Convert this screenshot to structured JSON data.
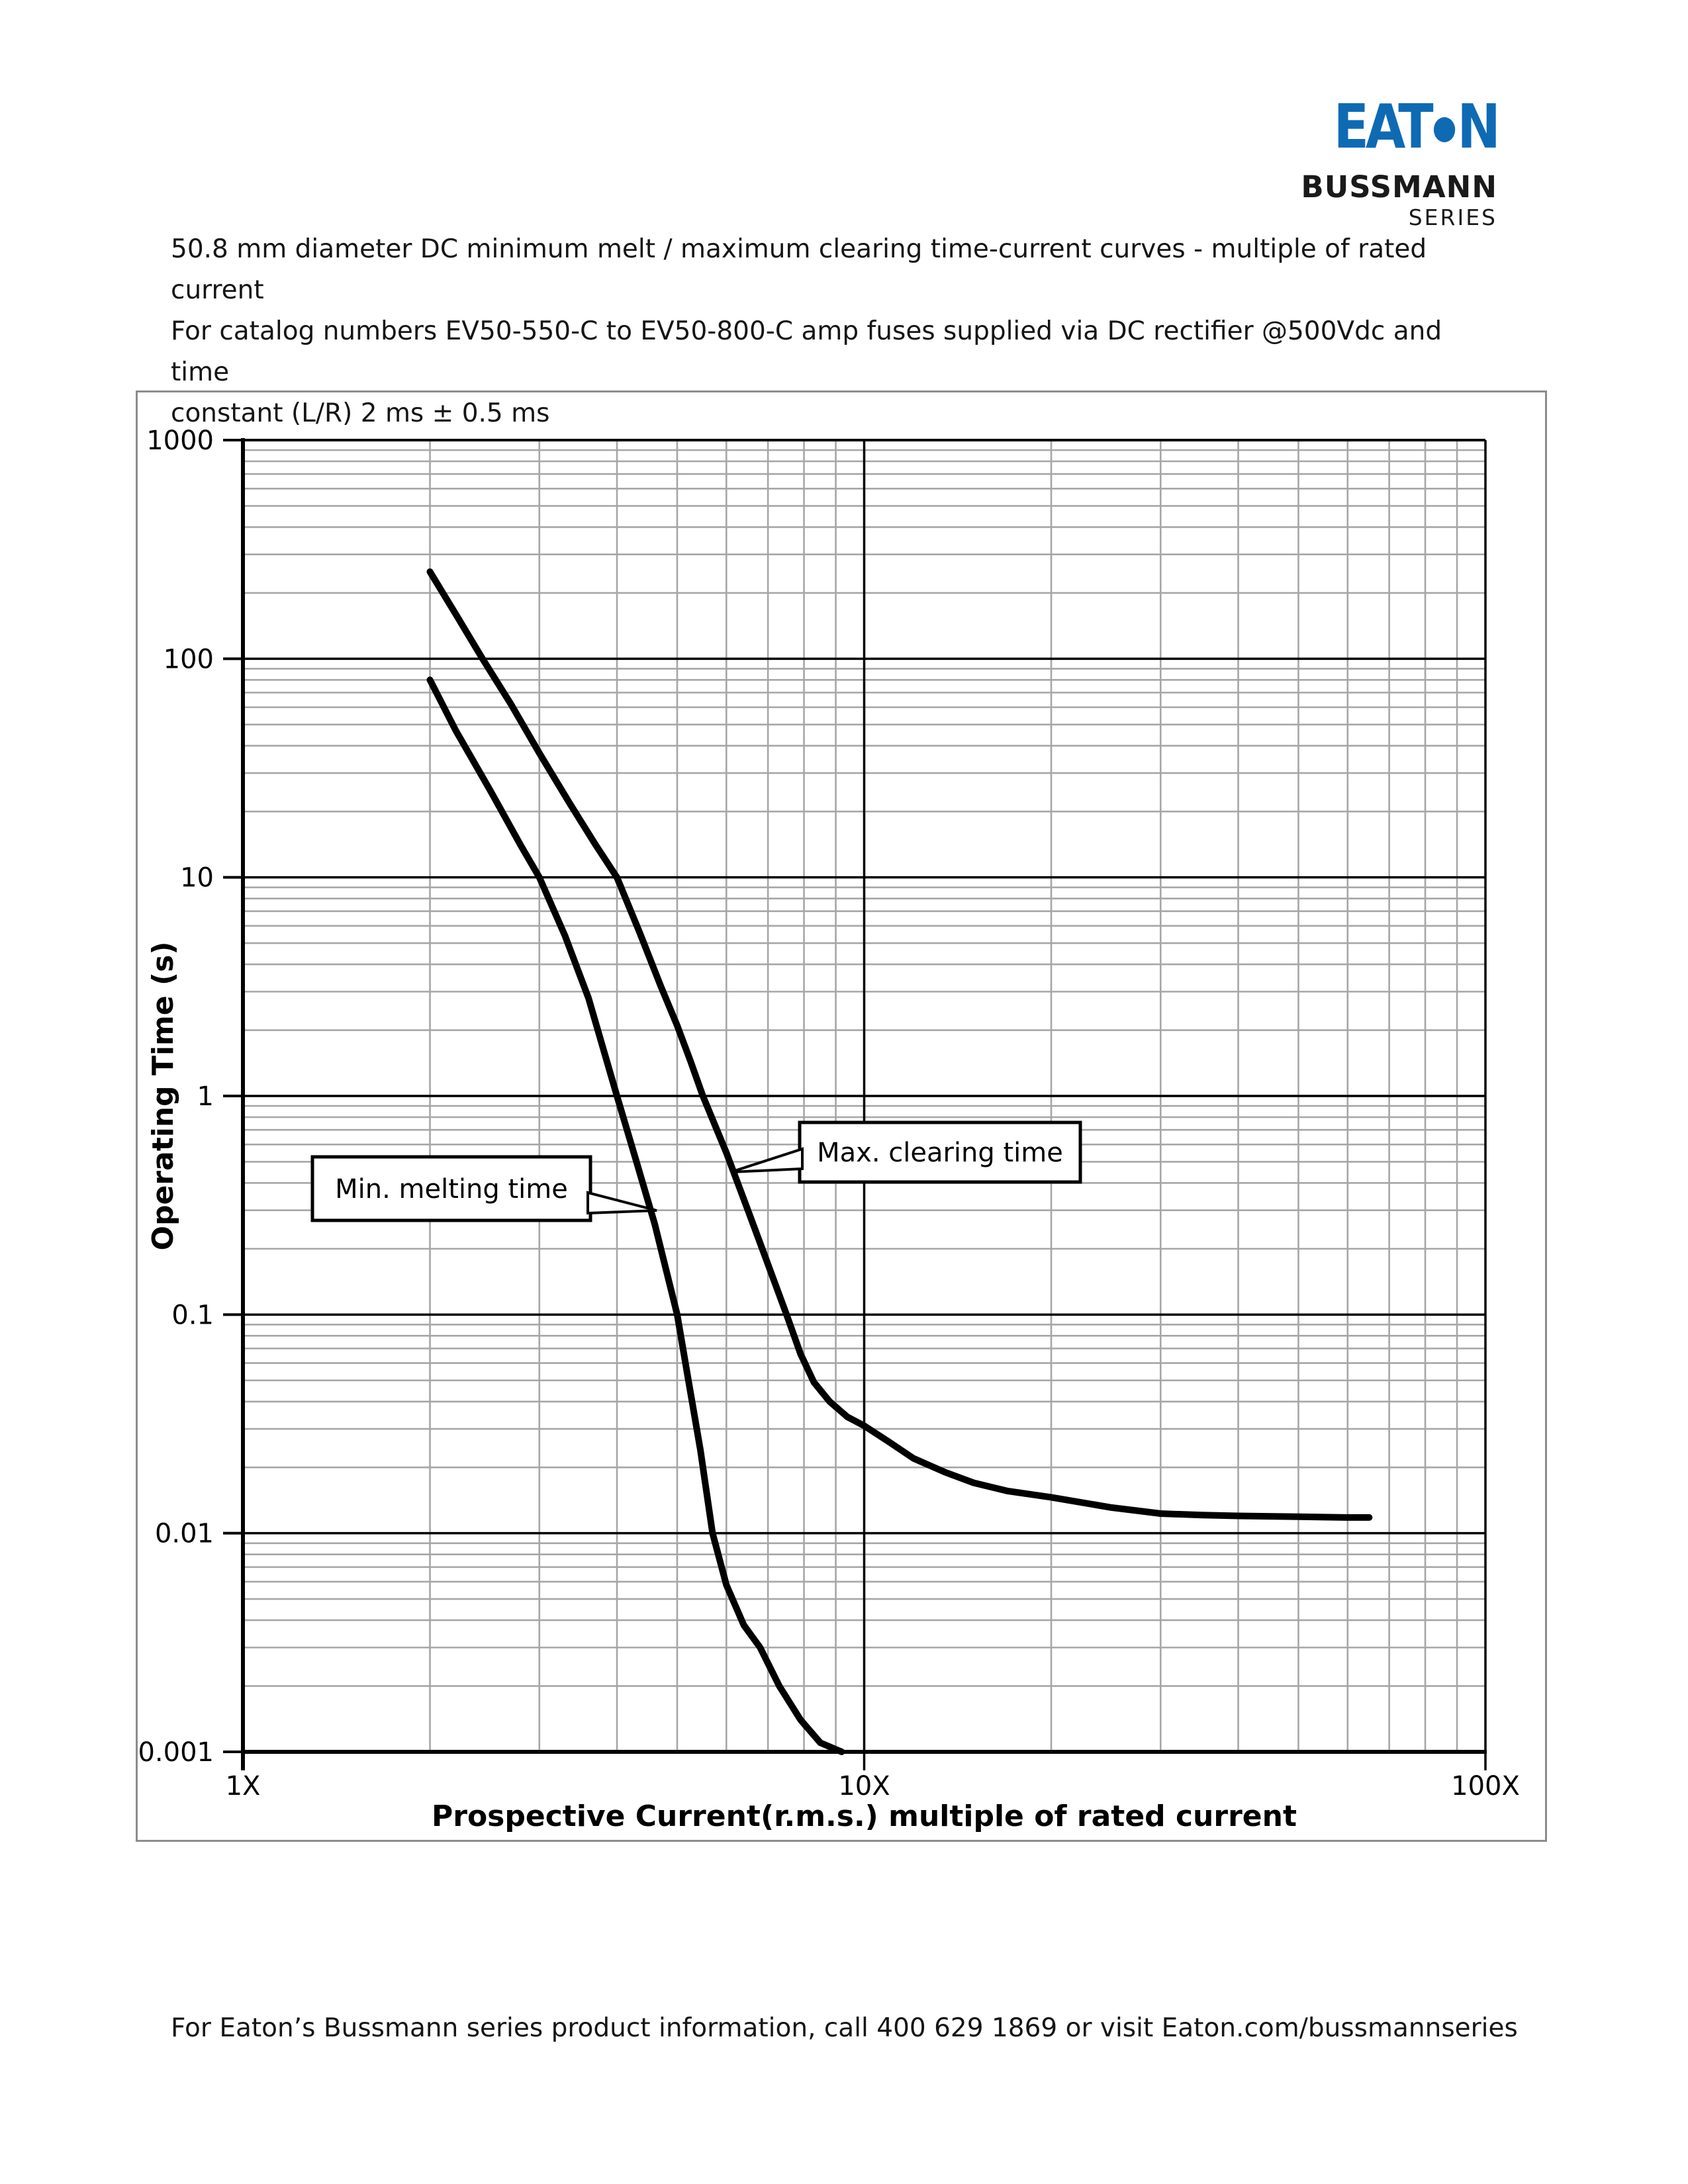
{
  "logo": {
    "word_start": "EAT",
    "word_end": "N",
    "brand": "BUSSMANN",
    "series": "SERIES",
    "blue": "#0f6ab4",
    "dot_icon": "eaton-o-dot"
  },
  "title": {
    "lines": [
      "50.8 mm diameter DC minimum melt / maximum clearing time-current curves - multiple of rated current",
      "For catalog numbers EV50-550-C to EV50-800-C amp fuses supplied via DC rectifier @500Vdc and time",
      "constant (L/R) 2 ms ± 0.5 ms"
    ]
  },
  "chart_data": {
    "type": "line",
    "x_axis": {
      "label": "Prospective Current(r.m.s.) multiple of rated current",
      "scale": "log",
      "min": 1,
      "max": 100,
      "ticks": [
        {
          "v": 1,
          "label": "1X"
        },
        {
          "v": 10,
          "label": "10X"
        },
        {
          "v": 100,
          "label": "100X"
        }
      ]
    },
    "y_axis": {
      "label": "Operating Time (s)",
      "scale": "log",
      "min": 0.001,
      "max": 1000,
      "ticks": [
        {
          "v": 1000,
          "label": "1000"
        },
        {
          "v": 100,
          "label": "100"
        },
        {
          "v": 10,
          "label": "10"
        },
        {
          "v": 1,
          "label": "1"
        },
        {
          "v": 0.1,
          "label": "0.1"
        },
        {
          "v": 0.01,
          "label": "0.01"
        },
        {
          "v": 0.001,
          "label": "0.001"
        }
      ]
    },
    "grid": {
      "minor": true,
      "major": true,
      "legend": "callout-labels"
    },
    "colors": {
      "curve": "#000000",
      "minor_grid": "#a6a6a6",
      "major_grid": "#000000",
      "border": "#8c8c8c",
      "callout_fill": "#ffffff",
      "callout_stroke": "#000000"
    },
    "series": [
      {
        "name": "Min. melting time",
        "points": [
          [
            2.0,
            80
          ],
          [
            2.2,
            47
          ],
          [
            2.5,
            25
          ],
          [
            2.8,
            14
          ],
          [
            3.0,
            10
          ],
          [
            3.3,
            5.4
          ],
          [
            3.6,
            2.8
          ],
          [
            4.0,
            1.0
          ],
          [
            4.3,
            0.5
          ],
          [
            4.6,
            0.26
          ],
          [
            5.0,
            0.1
          ],
          [
            5.2,
            0.052
          ],
          [
            5.45,
            0.024
          ],
          [
            5.7,
            0.01
          ],
          [
            6.0,
            0.0058
          ],
          [
            6.4,
            0.0038
          ],
          [
            6.8,
            0.003
          ],
          [
            7.3,
            0.002
          ],
          [
            7.9,
            0.0014
          ],
          [
            8.5,
            0.0011
          ],
          [
            9.2,
            0.001
          ]
        ]
      },
      {
        "name": "Max. clearing time",
        "points": [
          [
            2.0,
            250
          ],
          [
            2.2,
            160
          ],
          [
            2.43,
            100
          ],
          [
            2.7,
            62
          ],
          [
            3.0,
            37
          ],
          [
            3.35,
            22
          ],
          [
            3.7,
            14
          ],
          [
            4.0,
            10
          ],
          [
            4.35,
            5.6
          ],
          [
            4.7,
            3.2
          ],
          [
            5.0,
            2.1
          ],
          [
            5.25,
            1.45
          ],
          [
            5.5,
            1.0
          ],
          [
            6.0,
            0.55
          ],
          [
            6.5,
            0.3
          ],
          [
            7.0,
            0.17
          ],
          [
            7.5,
            0.1
          ],
          [
            7.9,
            0.066
          ],
          [
            8.3,
            0.049
          ],
          [
            8.8,
            0.04
          ],
          [
            9.4,
            0.034
          ],
          [
            10,
            0.031
          ],
          [
            11,
            0.026
          ],
          [
            12,
            0.022
          ],
          [
            13.5,
            0.019
          ],
          [
            15,
            0.017
          ],
          [
            17,
            0.0156
          ],
          [
            20,
            0.0146
          ],
          [
            25,
            0.0131
          ],
          [
            30,
            0.0123
          ],
          [
            35,
            0.0121
          ],
          [
            40,
            0.012
          ],
          [
            50,
            0.0119
          ],
          [
            60,
            0.0118
          ],
          [
            65,
            0.0118
          ]
        ]
      }
    ]
  },
  "footer": {
    "text": "For Eaton’s Bussmann series product information, call 400 629 1869 or visit Eaton.com/bussmannseries"
  }
}
